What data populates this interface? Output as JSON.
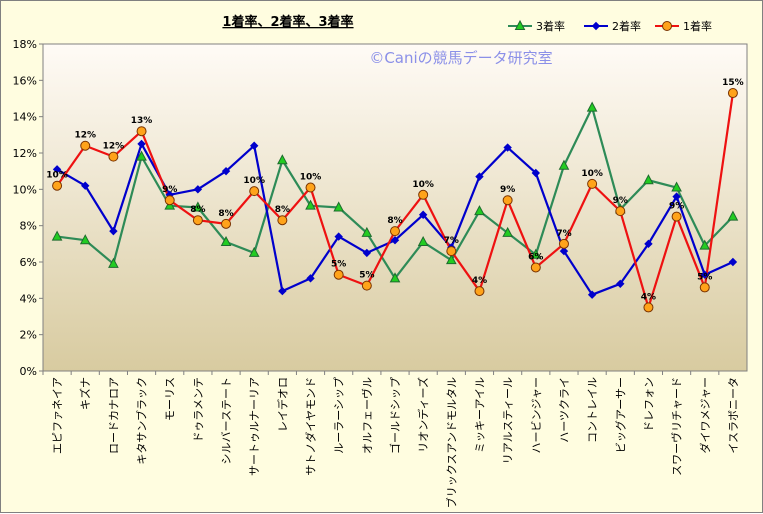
{
  "chart_data": {
    "type": "line",
    "title": "1着率、2着率、3着率",
    "watermark": "©Caniの競馬データ研究室",
    "ylim": [
      0,
      18
    ],
    "y_ticks": [
      "0%",
      "2%",
      "4%",
      "6%",
      "8%",
      "10%",
      "12%",
      "14%",
      "16%",
      "18%"
    ],
    "grid": false,
    "legend_position": "top-right",
    "categories": [
      "エピファネイア",
      "キズナ",
      "ロードカナロア",
      "キタサンブラック",
      "モーリス",
      "ドゥラメンテ",
      "シルバーステート",
      "サートゥルナーリア",
      "レイデオロ",
      "サトノダイヤモンド",
      "ルーラーシップ",
      "オルフェーヴル",
      "ゴールドシップ",
      "リオンディーズ",
      "ブリックスアンドモルタル",
      "ミッキーアイル",
      "リアルスティール",
      "ハービンジャー",
      "ハーツクライ",
      "コントレイル",
      "ビッグアーサー",
      "ドレフォン",
      "スワーヴリチャード",
      "ダイワメジャー",
      "イスラボニータ"
    ],
    "series": [
      {
        "name": "3着率",
        "color": "#2e8b57",
        "marker": "triangle",
        "marker_fill": "#22cc22",
        "values": [
          7.4,
          7.2,
          5.9,
          11.8,
          9.1,
          9.0,
          7.1,
          6.5,
          11.6,
          9.1,
          9.0,
          7.6,
          5.1,
          7.1,
          6.1,
          8.8,
          7.6,
          6.4,
          11.3,
          14.5,
          8.9,
          10.5,
          10.1,
          6.9,
          8.5
        ]
      },
      {
        "name": "2着率",
        "color": "#0000cc",
        "marker": "diamond",
        "marker_fill": "#0000cc",
        "values": [
          11.1,
          10.2,
          7.7,
          12.5,
          9.7,
          10.0,
          11.0,
          12.4,
          4.4,
          5.1,
          7.4,
          6.5,
          7.2,
          8.6,
          6.8,
          10.7,
          12.3,
          10.9,
          6.6,
          4.2,
          4.8,
          7.0,
          9.6,
          5.3,
          6.0
        ]
      },
      {
        "name": "1着率",
        "color": "#ee1111",
        "marker": "circle",
        "marker_fill": "#ffa31a",
        "values": [
          10.2,
          12.4,
          11.8,
          13.2,
          9.4,
          8.3,
          8.1,
          9.9,
          8.3,
          10.1,
          5.3,
          4.7,
          7.7,
          9.7,
          6.6,
          4.4,
          9.4,
          5.7,
          7.0,
          10.3,
          8.8,
          3.5,
          8.5,
          4.6,
          15.3
        ]
      }
    ],
    "data_labels": {
      "series": "1着率",
      "texts": [
        "10%",
        "12%",
        "12%",
        "13%",
        "9%",
        "8%",
        "8%",
        "10%",
        "8%",
        "10%",
        "5%",
        "5%",
        "8%",
        "10%",
        "7%",
        "4%",
        "9%",
        "6%",
        "7%",
        "10%",
        "9%",
        "4%",
        "9%",
        "5%",
        "15%"
      ]
    }
  }
}
